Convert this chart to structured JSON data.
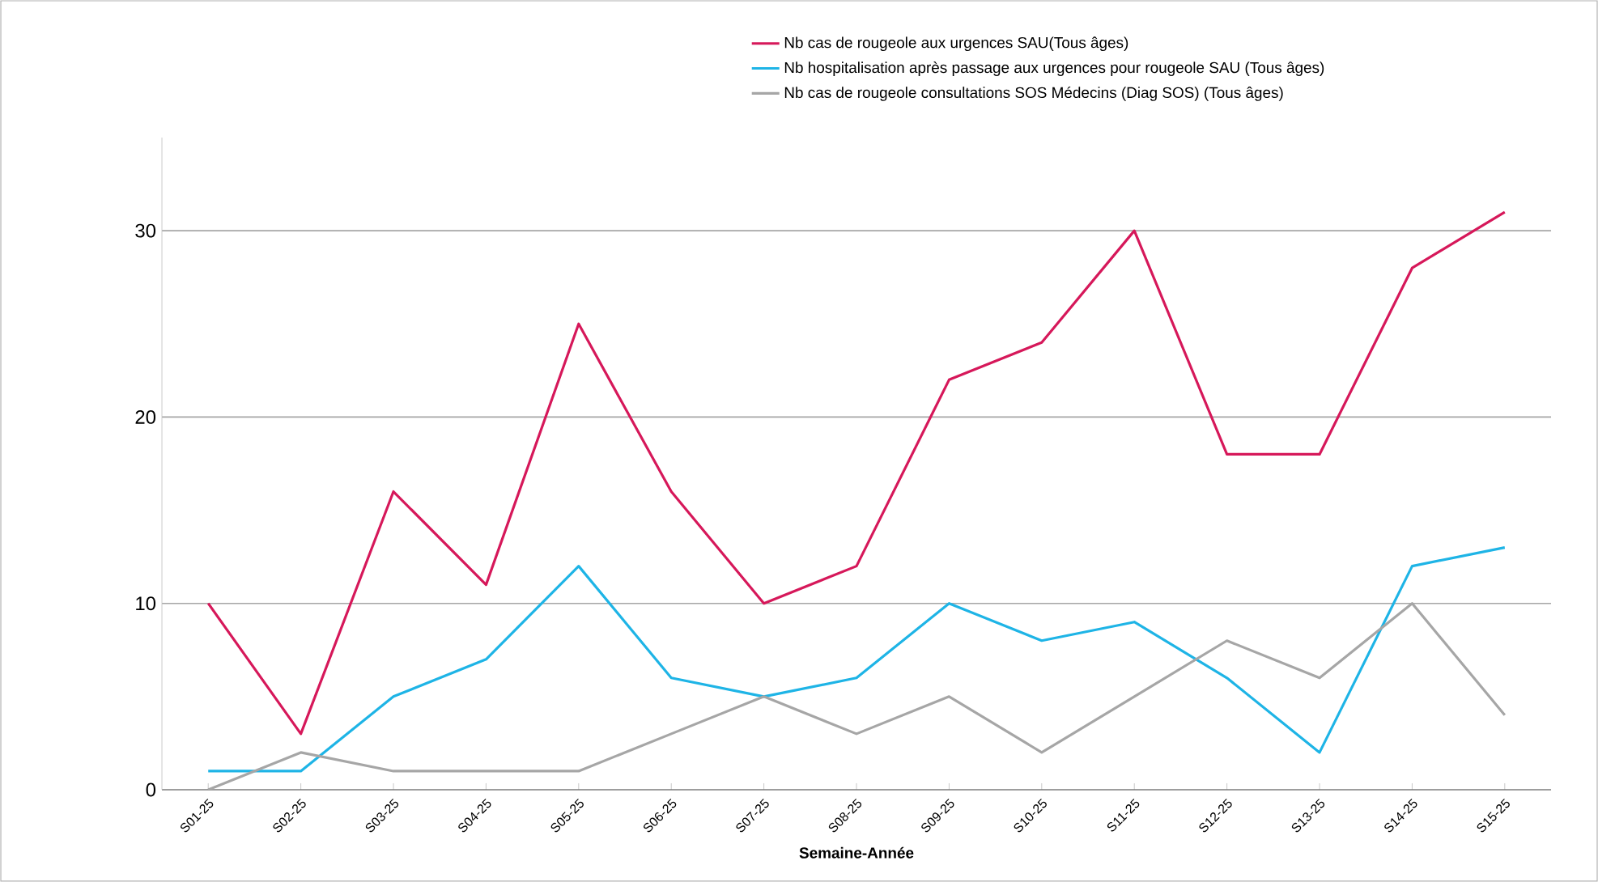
{
  "chart_data": {
    "type": "line",
    "xlabel": "Semaine-Année",
    "categories": [
      "S01-25",
      "S02-25",
      "S03-25",
      "S04-25",
      "S05-25",
      "S06-25",
      "S07-25",
      "S08-25",
      "S09-25",
      "S10-25",
      "S11-25",
      "S12-25",
      "S13-25",
      "S14-25",
      "S15-25"
    ],
    "series": [
      {
        "name": "Nb cas de rougeole aux urgences SAU(Tous âges)",
        "color": "#d6185a",
        "values": [
          10,
          3,
          16,
          11,
          25,
          16,
          10,
          12,
          22,
          24,
          30,
          18,
          18,
          28,
          31
        ]
      },
      {
        "name": "Nb hospitalisation après passage aux urgences pour  rougeole SAU (Tous âges)",
        "color": "#1eb4e6",
        "values": [
          1,
          1,
          5,
          7,
          12,
          6,
          5,
          6,
          10,
          8,
          9,
          6,
          2,
          12,
          13
        ]
      },
      {
        "name": "Nb cas de rougeole consultations SOS Médecins (Diag SOS) (Tous âges)",
        "color": "#a6a6a6",
        "values": [
          0,
          2,
          1,
          1,
          1,
          3,
          5,
          3,
          5,
          2,
          5,
          8,
          6,
          10,
          4
        ]
      }
    ],
    "ylim": [
      0,
      35
    ],
    "yticks": [
      0,
      10,
      20,
      30
    ],
    "grid": "y",
    "legend": "top",
    "marker": "none",
    "line_style": "solid"
  }
}
